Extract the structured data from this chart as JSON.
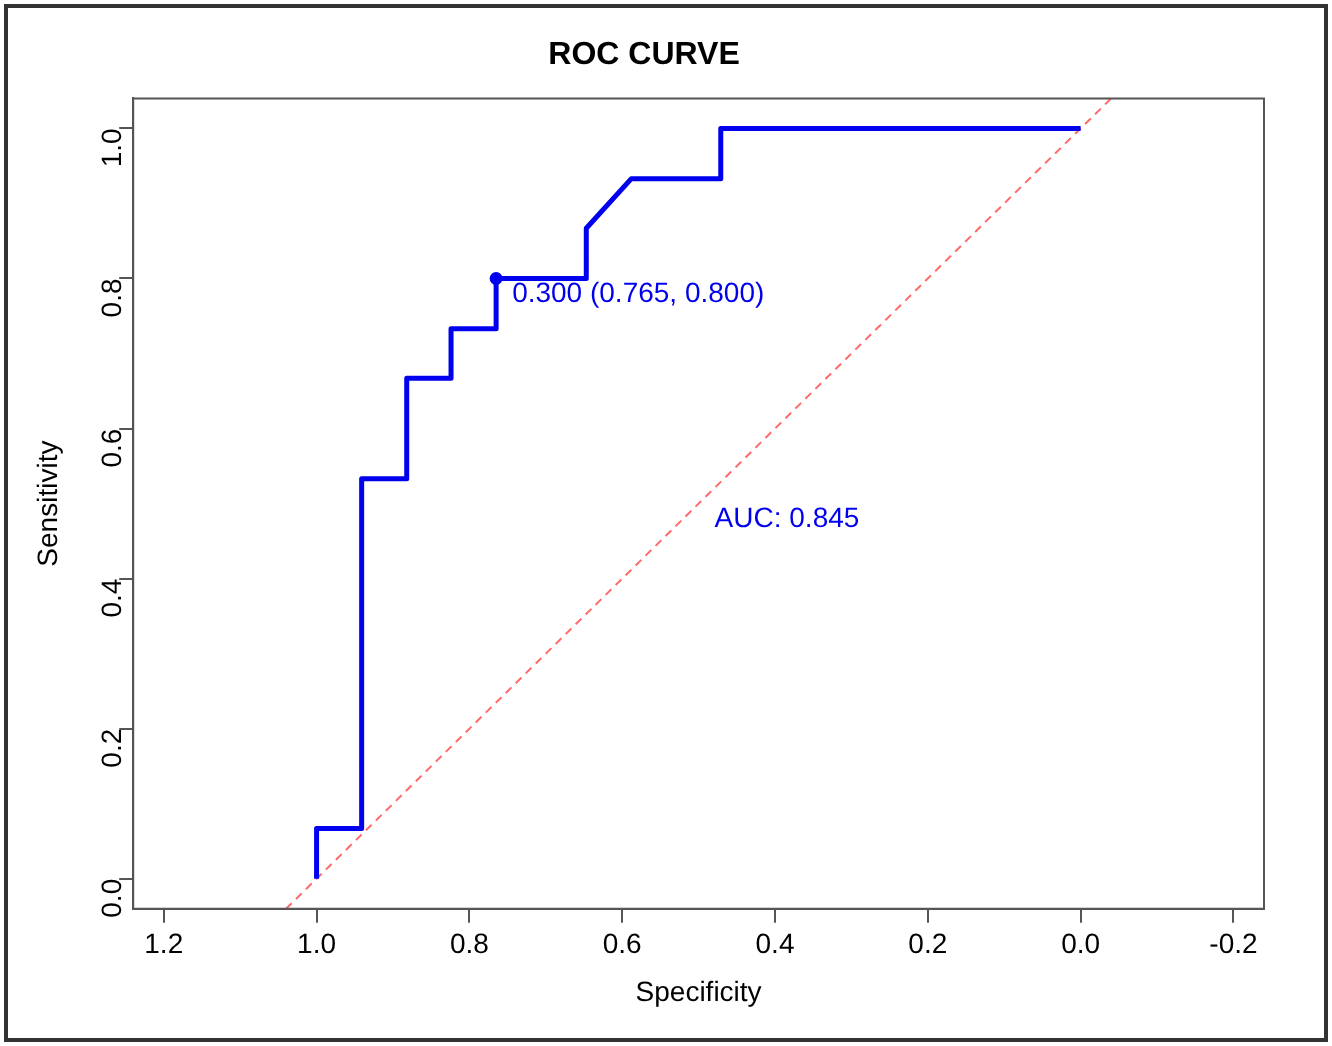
{
  "chart_data": {
    "type": "line",
    "title": "ROC CURVE",
    "xlabel": "Specificity",
    "ylabel": "Sensitivity",
    "xlim": [
      1.24,
      -0.24
    ],
    "xticks": [
      1.2,
      {
        "value": 1,
        "label": "1.0"
      },
      0.8,
      0.6,
      0.4,
      0.2,
      {
        "value": 0,
        "label": "0.0"
      },
      -0.2
    ],
    "ylim": [
      -0.04,
      1.04
    ],
    "yticks": [
      {
        "value": 0,
        "label": "0.0"
      },
      0.2,
      0.4,
      0.6,
      0.8,
      {
        "value": 1,
        "label": "1.0"
      }
    ],
    "grid": false,
    "legend": false,
    "marker": "none",
    "line_style": "solid",
    "series": [
      {
        "color": "#0000ee",
        "x": [
          1,
          1,
          0.941,
          0.941,
          0.882,
          0.882,
          0.824,
          0.824,
          0.765,
          0.765,
          0.647,
          0.647,
          0.588,
          0.471,
          0.471,
          0
        ],
        "values": [
          0,
          0.067,
          0.067,
          0.533,
          0.533,
          0.667,
          0.667,
          0.733,
          0.733,
          0.8,
          0.8,
          0.867,
          0.933,
          0.933,
          1,
          1
        ]
      },
      {
        "color": "#ff6a6a",
        "line_style": "dashed",
        "x": [
          1.04,
          -0.04
        ],
        "values": [
          -0.04,
          1.04
        ]
      },
      {
        "type": "scatter",
        "color": "#0000ee",
        "marker": "circle",
        "x": [
          0.765
        ],
        "values": [
          0.8
        ]
      }
    ],
    "annotations": [
      {
        "text": "0.300 (0.765, 0.800)",
        "x": 0.765,
        "y": 0.8
      },
      {
        "text": "AUC: 0.845",
        "x": 0.5,
        "y": 0.5
      }
    ]
  }
}
